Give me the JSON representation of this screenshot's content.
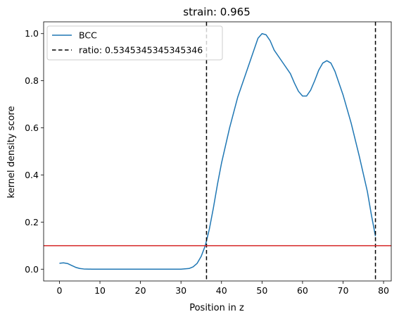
{
  "chart_data": {
    "type": "line",
    "title": "strain: 0.965",
    "xlabel": "Position in z",
    "ylabel": "kernel density score",
    "xlim": [
      -3.9,
      81.9
    ],
    "ylim": [
      -0.05,
      1.05
    ],
    "xticks": [
      0,
      10,
      20,
      30,
      40,
      50,
      60,
      70,
      80
    ],
    "yticks": [
      0.0,
      0.2,
      0.4,
      0.6,
      0.8,
      1.0
    ],
    "grid": false,
    "legend_position": "upper-left",
    "series": [
      {
        "name": "BCC",
        "color": "#1f77b4",
        "points": [
          [
            0,
            0.025
          ],
          [
            1,
            0.027
          ],
          [
            2,
            0.024
          ],
          [
            3,
            0.016
          ],
          [
            4,
            0.008
          ],
          [
            5,
            0.003
          ],
          [
            6,
            0.001
          ],
          [
            8,
            0.0
          ],
          [
            10,
            0.0
          ],
          [
            15,
            0.0
          ],
          [
            20,
            0.0
          ],
          [
            25,
            0.0
          ],
          [
            30,
            0.0
          ],
          [
            32,
            0.003
          ],
          [
            33,
            0.01
          ],
          [
            34,
            0.025
          ],
          [
            35,
            0.055
          ],
          [
            36,
            0.1
          ],
          [
            37,
            0.17
          ],
          [
            38,
            0.26
          ],
          [
            39,
            0.36
          ],
          [
            40,
            0.45
          ],
          [
            42,
            0.6
          ],
          [
            44,
            0.73
          ],
          [
            46,
            0.83
          ],
          [
            48,
            0.93
          ],
          [
            49,
            0.98
          ],
          [
            50,
            1.0
          ],
          [
            51,
            0.995
          ],
          [
            52,
            0.97
          ],
          [
            53,
            0.93
          ],
          [
            55,
            0.88
          ],
          [
            57,
            0.83
          ],
          [
            58,
            0.79
          ],
          [
            59,
            0.755
          ],
          [
            60,
            0.735
          ],
          [
            61,
            0.735
          ],
          [
            62,
            0.76
          ],
          [
            63,
            0.8
          ],
          [
            64,
            0.845
          ],
          [
            65,
            0.875
          ],
          [
            66,
            0.885
          ],
          [
            67,
            0.875
          ],
          [
            68,
            0.84
          ],
          [
            69,
            0.79
          ],
          [
            70,
            0.74
          ],
          [
            72,
            0.62
          ],
          [
            74,
            0.48
          ],
          [
            76,
            0.33
          ],
          [
            77,
            0.23
          ],
          [
            78,
            0.14
          ]
        ]
      }
    ],
    "vlines": {
      "name": "ratio: 0.5345345345345346",
      "color": "#000000",
      "x": [
        36.3,
        78.0
      ]
    },
    "hline": {
      "color": "#d62728",
      "y": 0.1
    }
  }
}
